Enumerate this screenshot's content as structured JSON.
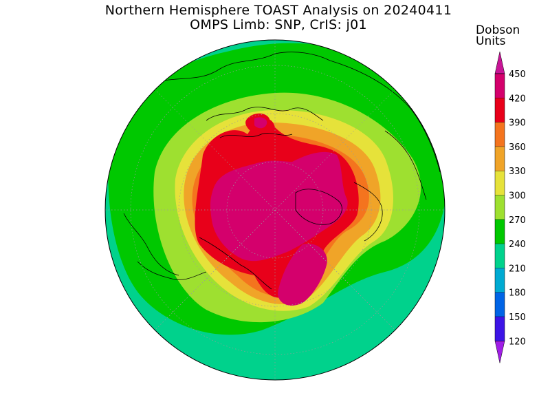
{
  "title_line1": "Northern Hemisphere TOAST Analysis on 20240411",
  "title_line2": "OMPS Limb: SNP, CrIS: j01",
  "legend": {
    "title_line1": "Dobson",
    "title_line2": "Units",
    "levels": [
      "450",
      "420",
      "390",
      "360",
      "330",
      "300",
      "270",
      "240",
      "210",
      "180",
      "150",
      "120"
    ],
    "colors": {
      "450": "#d4006c",
      "420": "#e8001a",
      "390": "#f4741e",
      "360": "#f0a428",
      "330": "#e6e23a",
      "300": "#9ee030",
      "270": "#00c800",
      "240": "#00d28c",
      "210": "#00aad2",
      "180": "#0064e6",
      "150": "#3c14e6",
      "120": "#8214d2",
      "top_arrow": "#c81496",
      "bottom_arrow": "#a01ee6"
    }
  },
  "map": {
    "projection": "north polar stereographic",
    "background_field": "total column ozone"
  }
}
